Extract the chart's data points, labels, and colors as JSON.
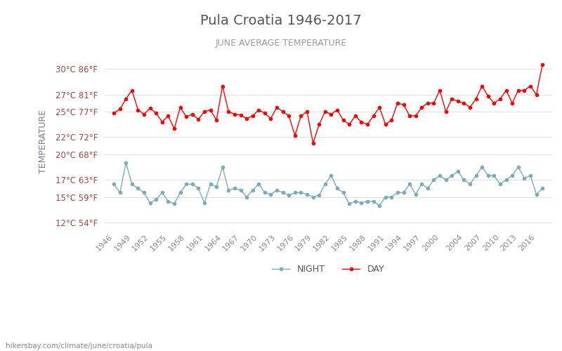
{
  "title": "Pula Croatia 1946-2017",
  "subtitle": "JUNE AVERAGE TEMPERATURE",
  "ylabel": "TEMPERATURE",
  "footer": "hikersbay.com/climate/june/croatia/pula",
  "years": [
    1946,
    1947,
    1948,
    1949,
    1950,
    1951,
    1952,
    1953,
    1954,
    1955,
    1956,
    1957,
    1958,
    1959,
    1960,
    1961,
    1962,
    1963,
    1964,
    1965,
    1966,
    1967,
    1968,
    1969,
    1970,
    1971,
    1972,
    1973,
    1974,
    1975,
    1976,
    1977,
    1978,
    1979,
    1980,
    1981,
    1982,
    1983,
    1984,
    1985,
    1986,
    1987,
    1988,
    1989,
    1990,
    1991,
    1992,
    1993,
    1994,
    1995,
    1996,
    1997,
    1998,
    1999,
    2000,
    2001,
    2002,
    2003,
    2004,
    2005,
    2006,
    2007,
    2008,
    2009,
    2010,
    2011,
    2012,
    2013,
    2014,
    2015,
    2016,
    2017
  ],
  "day_temps": [
    24.8,
    25.3,
    26.5,
    27.5,
    25.2,
    24.7,
    25.4,
    24.8,
    23.8,
    24.5,
    23.0,
    25.5,
    24.4,
    24.7,
    24.1,
    25.0,
    25.2,
    24.0,
    28.0,
    25.0,
    24.7,
    24.6,
    24.2,
    24.5,
    25.2,
    24.8,
    24.2,
    25.5,
    25.0,
    24.5,
    22.2,
    24.5,
    25.0,
    21.3,
    23.5,
    25.0,
    24.7,
    25.2,
    24.0,
    23.5,
    24.5,
    23.8,
    23.5,
    24.5,
    25.5,
    23.5,
    24.0,
    26.0,
    25.8,
    24.5,
    24.5,
    25.5,
    26.0,
    26.0,
    27.5,
    25.0,
    26.5,
    26.2,
    26.0,
    25.5,
    26.5,
    28.0,
    26.8,
    26.0,
    26.5,
    27.5,
    26.0,
    27.5,
    27.5,
    28.0,
    27.0,
    30.5
  ],
  "night_temps": [
    16.5,
    15.5,
    19.0,
    16.5,
    16.0,
    15.5,
    14.3,
    14.7,
    15.5,
    14.5,
    14.2,
    15.5,
    16.5,
    16.5,
    16.0,
    14.3,
    16.5,
    16.2,
    18.5,
    15.8,
    16.0,
    15.8,
    15.0,
    15.8,
    16.5,
    15.5,
    15.3,
    15.8,
    15.5,
    15.2,
    15.5,
    15.5,
    15.3,
    15.0,
    15.2,
    16.5,
    17.5,
    16.0,
    15.5,
    14.2,
    14.5,
    14.3,
    14.5,
    14.5,
    14.0,
    15.0,
    15.0,
    15.5,
    15.5,
    16.5,
    15.3,
    16.5,
    16.0,
    17.0,
    17.5,
    17.0,
    17.5,
    18.0,
    17.0,
    16.5,
    17.5,
    18.5,
    17.5,
    17.5,
    16.5,
    17.0,
    17.5,
    18.5,
    17.2,
    17.5,
    15.3,
    16.0
  ],
  "day_color": "#ff0000",
  "night_color": "#7aacb8",
  "title_color": "#555555",
  "subtitle_color": "#999999",
  "ylabel_color": "#7a7a9a",
  "tick_color": "#aa4444",
  "bg_color": "#ffffff",
  "grid_color": "#e0e0e0",
  "yticks_c": [
    12,
    15,
    17,
    20,
    22,
    25,
    27,
    30
  ],
  "ytick_labels": [
    "12°C 54°F",
    "15°C 59°F",
    "17°C 63°F",
    "20°C 68°F",
    "22°C 72°F",
    "25°C 77°F",
    "27°C 81°F",
    "30°C 86°F"
  ],
  "xtick_years": [
    1946,
    1949,
    1952,
    1955,
    1958,
    1961,
    1964,
    1967,
    1970,
    1973,
    1976,
    1979,
    1982,
    1985,
    1988,
    1991,
    1994,
    1997,
    2000,
    2004,
    2007,
    2010,
    2013,
    2016
  ],
  "ylim": [
    11.5,
    31.5
  ],
  "xlim": [
    1944.5,
    2018.5
  ],
  "legend_night": "NIGHT",
  "legend_day": "DAY"
}
